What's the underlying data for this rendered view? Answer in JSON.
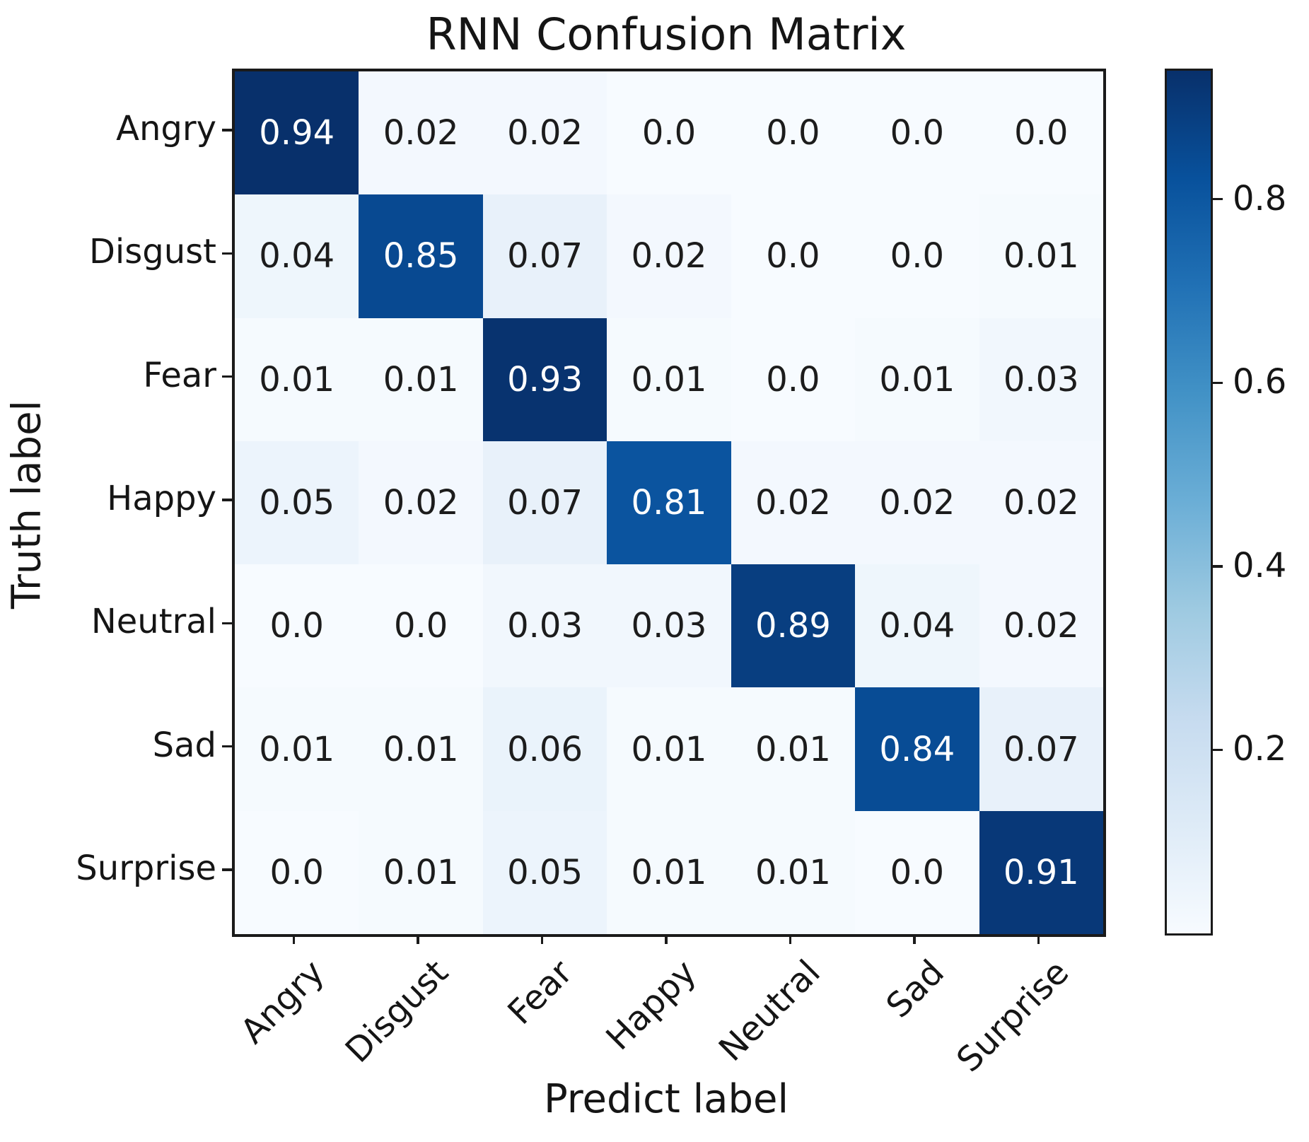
{
  "chart_data": {
    "type": "heatmap",
    "title": "RNN Confusion Matrix",
    "xlabel": "Predict label",
    "ylabel": "Truth label",
    "x_categories": [
      "Angry",
      "Disgust",
      "Fear",
      "Happy",
      "Neutral",
      "Sad",
      "Surprise"
    ],
    "y_categories": [
      "Angry",
      "Disgust",
      "Fear",
      "Happy",
      "Neutral",
      "Sad",
      "Surprise"
    ],
    "matrix": [
      [
        0.94,
        0.02,
        0.02,
        0.0,
        0.0,
        0.0,
        0.0
      ],
      [
        0.04,
        0.85,
        0.07,
        0.02,
        0.0,
        0.0,
        0.01
      ],
      [
        0.01,
        0.01,
        0.93,
        0.01,
        0.0,
        0.01,
        0.03
      ],
      [
        0.05,
        0.02,
        0.07,
        0.81,
        0.02,
        0.02,
        0.02
      ],
      [
        0.0,
        0.0,
        0.03,
        0.03,
        0.89,
        0.04,
        0.02
      ],
      [
        0.01,
        0.01,
        0.06,
        0.01,
        0.01,
        0.84,
        0.07
      ],
      [
        0.0,
        0.01,
        0.05,
        0.01,
        0.01,
        0.0,
        0.91
      ]
    ],
    "cell_labels": [
      [
        "0.94",
        "0.02",
        "0.02",
        "0.0",
        "0.0",
        "0.0",
        "0.0"
      ],
      [
        "0.04",
        "0.85",
        "0.07",
        "0.02",
        "0.0",
        "0.0",
        "0.01"
      ],
      [
        "0.01",
        "0.01",
        "0.93",
        "0.01",
        "0.0",
        "0.01",
        "0.03"
      ],
      [
        "0.05",
        "0.02",
        "0.07",
        "0.81",
        "0.02",
        "0.02",
        "0.02"
      ],
      [
        "0.0",
        "0.0",
        "0.03",
        "0.03",
        "0.89",
        "0.04",
        "0.02"
      ],
      [
        "0.01",
        "0.01",
        "0.06",
        "0.01",
        "0.01",
        "0.84",
        "0.07"
      ],
      [
        "0.0",
        "0.01",
        "0.05",
        "0.01",
        "0.01",
        "0.0",
        "0.91"
      ]
    ],
    "vmin": 0.0,
    "vmax": 0.94,
    "colormap_name": "Blues",
    "colormap_stops": [
      "#f7fbff",
      "#deebf7",
      "#c6dbef",
      "#9ecae1",
      "#6baed6",
      "#4292c6",
      "#2171b5",
      "#08519c",
      "#08306b"
    ],
    "colorbar_ticks": [
      {
        "value": 0.2,
        "label": "0.2"
      },
      {
        "value": 0.4,
        "label": "0.4"
      },
      {
        "value": 0.6,
        "label": "0.6"
      },
      {
        "value": 0.8,
        "label": "0.8"
      }
    ],
    "legend_position": "right-colorbar",
    "grid": false,
    "cell_text_color_light": "#ffffff",
    "cell_text_color_dark": "#1c1c1c",
    "axis_color": "#1a1a1a"
  }
}
